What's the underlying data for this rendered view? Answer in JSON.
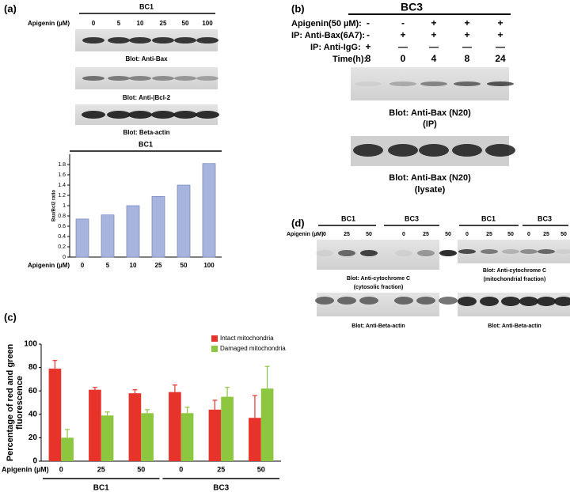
{
  "panels": {
    "a": {
      "label": "(a)",
      "cell_line": "BC1",
      "treatment": "Apigenin (µM)",
      "lanes": [
        "0",
        "5",
        "10",
        "25",
        "50",
        "100"
      ],
      "blots": [
        "Blot: Anti-Bax",
        "Blot: Anti-|Bcl-2",
        "Blot: Beta-actin"
      ]
    },
    "b": {
      "label": "(b)",
      "cell_line": "BC3",
      "rows": [
        {
          "label": "Apigenin(50 µM):",
          "lanes": [
            "-",
            "-",
            "+",
            "+",
            "+"
          ]
        },
        {
          "label": "IP: Anti-Bax(6A7):",
          "lanes": [
            "-",
            "+",
            "+",
            "+",
            "+"
          ]
        },
        {
          "label": "IP: Anti-IgG:",
          "lanes": [
            "+",
            "—",
            "—",
            "—",
            "—"
          ]
        },
        {
          "label": "Time(h):",
          "lanes": [
            "8",
            "0",
            "4",
            "8",
            "24"
          ]
        }
      ],
      "blots": [
        [
          "Blot: Anti-Bax (N20)",
          "(IP)"
        ],
        [
          "Blot: Anti-Bax (N20)",
          "(lysate)"
        ]
      ]
    },
    "c": {
      "label": "(c)"
    },
    "d": {
      "label": "(d)",
      "treatment": "Apigenin (µM)",
      "cell_lines": [
        "BC1",
        "BC3",
        "BC1",
        "BC3"
      ],
      "lanes": [
        "0",
        "25",
        "50",
        "0",
        "25",
        "50",
        "0",
        "25",
        "50",
        "0",
        "25",
        "50"
      ],
      "blots": [
        [
          "Blot: Anti-cytochrome C",
          "(cytosolic fraction)"
        ],
        [
          "Blot: Anti-cytochrome C",
          "(mitochondrial  fraction)"
        ],
        [
          "Blot: Anti-Beta-actin"
        ],
        [
          "Blot: Anti-Beta-actin"
        ]
      ]
    }
  },
  "chart_data": [
    {
      "type": "bar",
      "title": "BC1",
      "x_label": "Apigenin (µM)",
      "y_label": [
        "Bax/Bcl2 ratio"
      ],
      "categories": [
        "0",
        "5",
        "10",
        "25",
        "50",
        "100"
      ],
      "values": [
        0.74,
        0.82,
        1.0,
        1.18,
        1.4,
        1.82
      ],
      "color": "#a7b4de",
      "ylim": [
        0,
        2
      ],
      "yticks": [
        0,
        0.2,
        0.4,
        0.6,
        0.8,
        1,
        1.2,
        1.4,
        1.6,
        1.8
      ]
    },
    {
      "type": "bar",
      "x_label": "Apigenin (µM)",
      "y_label": [
        "Percentage of red and green",
        "fluorescence"
      ],
      "categories": [
        "0",
        "25",
        "50",
        "0",
        "25",
        "50"
      ],
      "groups": [
        "BC1",
        "BC3"
      ],
      "series": [
        {
          "name": "Intact mitochondria",
          "color": "#e8332b",
          "values": [
            79,
            61,
            58,
            59,
            44,
            37
          ],
          "errors": [
            7,
            2,
            3,
            6,
            8,
            19
          ]
        },
        {
          "name": "Damaged mitochondria",
          "color": "#8dc63f",
          "values": [
            20,
            39,
            41,
            41,
            55,
            62
          ],
          "errors": [
            7,
            3,
            3,
            5,
            8,
            19
          ]
        }
      ],
      "legend": "upper right",
      "ylim": [
        0,
        100
      ],
      "yticks": [
        0,
        20,
        40,
        60,
        80,
        100
      ]
    }
  ]
}
